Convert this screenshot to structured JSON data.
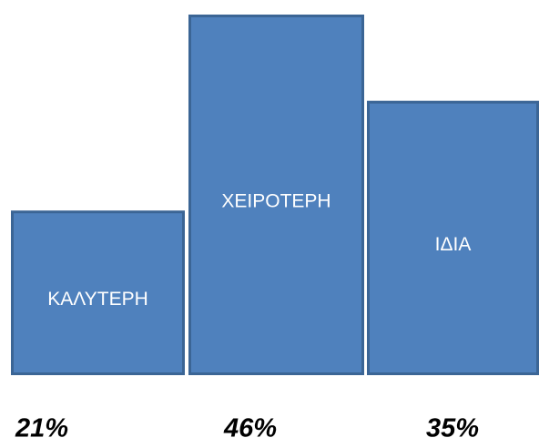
{
  "chart_data": {
    "type": "bar",
    "categories": [
      "ΚΑΛΥΤΕΡΗ",
      "ΧΕΙΡΟΤΕΡΗ",
      "ΙΔΙΑ"
    ],
    "values": [
      21,
      46,
      35
    ],
    "value_labels": [
      "21%",
      "46%",
      "35%"
    ],
    "color": "#4f81bd"
  }
}
